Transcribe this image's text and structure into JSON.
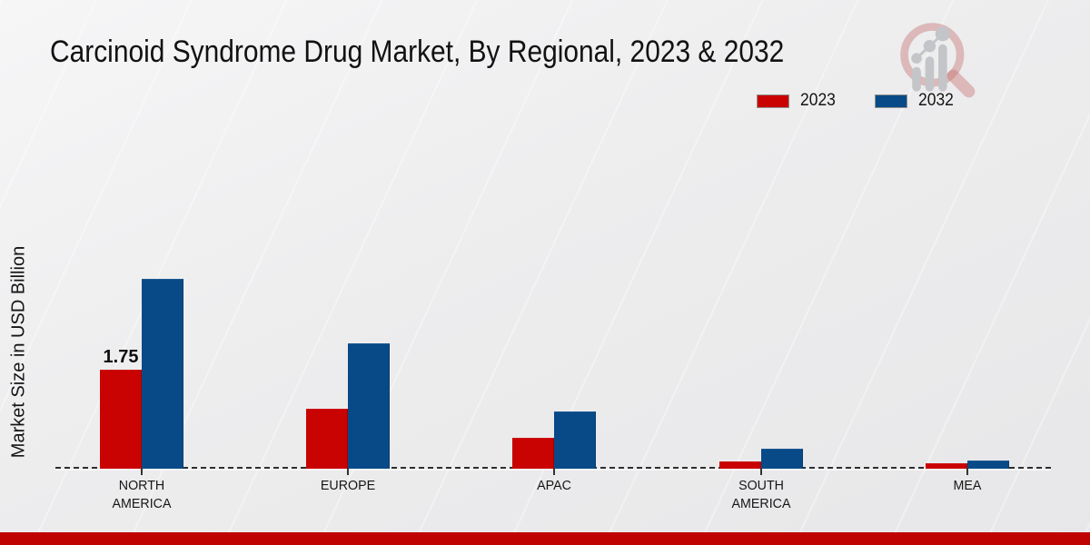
{
  "page": {
    "title": "Carcinoid Syndrome Drug Market, By Regional, 2023 & 2032",
    "ylabel": "Market Size in USD Billion",
    "footer_color": "#bf0303",
    "watermark_icon": "magnifier-bar-chart-logo"
  },
  "legend": {
    "items": [
      {
        "label": "2023",
        "color": "#c90202"
      },
      {
        "label": "2032",
        "color": "#084a87"
      }
    ],
    "position": "top-right"
  },
  "chart_data": {
    "type": "bar",
    "title": "Carcinoid Syndrome Drug Market, By Regional, 2023 & 2032",
    "xlabel": "",
    "ylabel": "Market Size in USD Billion",
    "categories": [
      "NORTH\nAMERICA",
      "EUROPE",
      "APAC",
      "SOUTH\nAMERICA",
      "MEA"
    ],
    "series": [
      {
        "name": "2023",
        "color": "#c90202",
        "values": [
          1.75,
          1.05,
          0.54,
          0.13,
          0.1
        ]
      },
      {
        "name": "2032",
        "color": "#084a87",
        "values": [
          3.34,
          2.2,
          1.01,
          0.35,
          0.14
        ]
      }
    ],
    "data_labels": [
      {
        "series_index": 0,
        "category_index": 0,
        "text": "1.75"
      }
    ],
    "ylim": [
      0,
      3.6
    ],
    "grid": false,
    "y_axis_ticks_visible": false,
    "baseline_style": "dashed",
    "legend_position": "top-right"
  }
}
